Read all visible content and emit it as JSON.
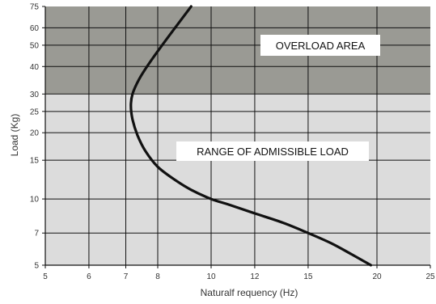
{
  "chart_data": {
    "type": "line",
    "xlabel": "Naturalf requency (Hz)",
    "ylabel": "Load (Kg)",
    "x_scale": "log",
    "y_scale": "log",
    "xlim": [
      5,
      25
    ],
    "ylim": [
      5,
      75
    ],
    "x_ticks": [
      5,
      6,
      7,
      8,
      10,
      12,
      15,
      20,
      25
    ],
    "x_tick_labels": [
      "5",
      "6",
      "7",
      "8",
      "10",
      "12",
      "15",
      "20",
      "25"
    ],
    "y_ticks": [
      5,
      7,
      10,
      15,
      20,
      25,
      30,
      40,
      50,
      60,
      75
    ],
    "y_tick_labels": [
      "5",
      "7",
      "10",
      "15",
      "20",
      "25",
      "30",
      "40",
      "50",
      "60",
      "75"
    ],
    "grid": true,
    "regions": [
      {
        "name": "overload",
        "label": "OVERLOAD AREA",
        "y_range": [
          30,
          75
        ],
        "color": "#9a9a94"
      },
      {
        "name": "admissible",
        "label": "RANGE OF ADMISSIBLE LOAD",
        "y_range": [
          5,
          30
        ],
        "color": "#dcdcdc"
      }
    ],
    "series": [
      {
        "color": "#111111",
        "points": [
          [
            19.5,
            5
          ],
          [
            18.0,
            5.6
          ],
          [
            16.5,
            6.3
          ],
          [
            15.0,
            7
          ],
          [
            13.5,
            7.8
          ],
          [
            12.0,
            8.6
          ],
          [
            10.8,
            9.4
          ],
          [
            10.0,
            10
          ],
          [
            9.2,
            11
          ],
          [
            8.6,
            12.2
          ],
          [
            8.0,
            14
          ],
          [
            7.6,
            16.5
          ],
          [
            7.35,
            19.5
          ],
          [
            7.2,
            23
          ],
          [
            7.15,
            26.5
          ],
          [
            7.2,
            30
          ],
          [
            7.4,
            35
          ],
          [
            7.7,
            41
          ],
          [
            8.1,
            49
          ],
          [
            8.6,
            60
          ],
          [
            9.2,
            75
          ]
        ]
      }
    ]
  }
}
